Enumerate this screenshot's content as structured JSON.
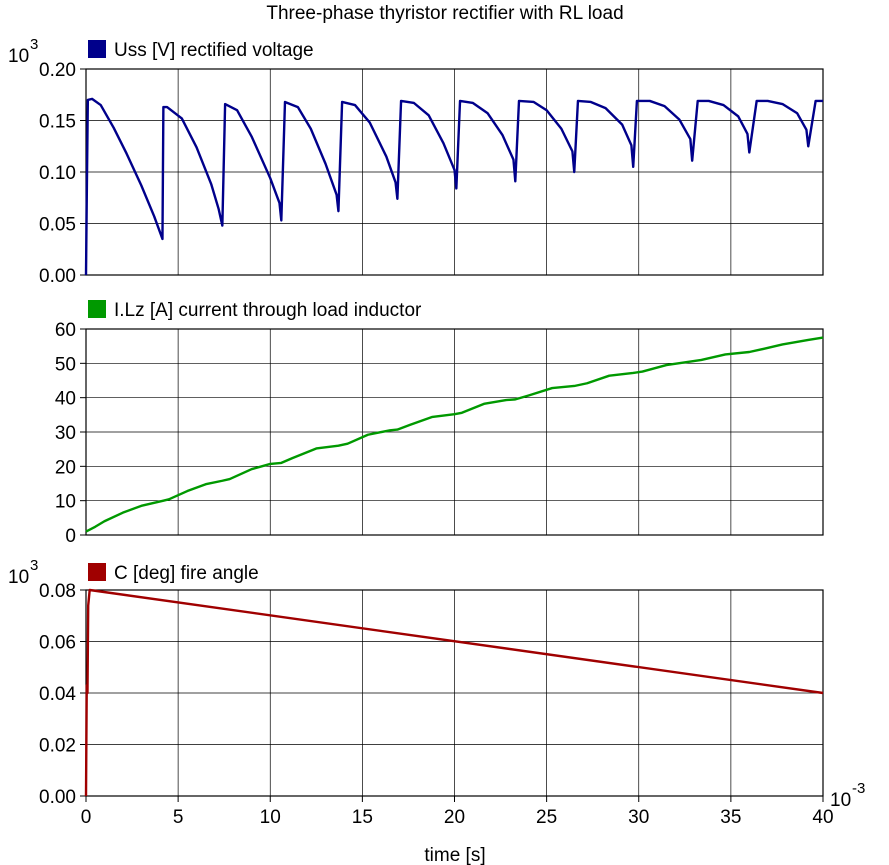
{
  "title": "Three-phase thyristor rectifier with RL load",
  "x_axis": {
    "label": "time [s]",
    "multiplier_base": "10",
    "multiplier_exp": "-3"
  },
  "chart_data": [
    {
      "type": "line",
      "series": [
        {
          "name": "Uss [V] rectified voltage",
          "color": "#00008b"
        }
      ],
      "legend": "top-left",
      "grid": true,
      "y_multiplier_base": "10",
      "y_multiplier_exp": "3",
      "xlim": [
        0,
        40
      ],
      "ylim": [
        0,
        0.2
      ],
      "yticks": [
        "0.00",
        "0.05",
        "0.10",
        "0.15",
        "0.20"
      ],
      "xticks": [
        "0",
        "5",
        "10",
        "15",
        "20",
        "25",
        "30",
        "35",
        "40"
      ],
      "x": [
        0,
        0.05,
        0.1,
        0.33,
        0.8,
        1.5,
        2.2,
        3.0,
        3.7,
        4.15,
        4.2,
        4.4,
        5.2,
        6.0,
        6.8,
        7.2,
        7.4,
        7.55,
        8.2,
        9.0,
        10.0,
        10.5,
        10.6,
        10.8,
        11.5,
        12.2,
        13.0,
        13.6,
        13.7,
        13.9,
        14.6,
        15.4,
        16.3,
        16.8,
        16.9,
        17.1,
        17.8,
        18.6,
        19.4,
        20.0,
        20.1,
        20.3,
        21.0,
        21.8,
        22.6,
        23.2,
        23.3,
        23.5,
        24.3,
        25.0,
        25.8,
        26.4,
        26.5,
        26.7,
        27.4,
        28.2,
        29.1,
        29.6,
        29.7,
        29.9,
        30.6,
        31.4,
        32.2,
        32.8,
        32.9,
        33.2,
        33.8,
        34.6,
        35.4,
        35.9,
        36.0,
        36.4,
        37.0,
        37.8,
        38.6,
        39.1,
        39.2,
        39.6,
        40.0
      ],
      "y": [
        0,
        0.09,
        0.17,
        0.171,
        0.165,
        0.143,
        0.118,
        0.087,
        0.057,
        0.035,
        0.163,
        0.163,
        0.152,
        0.124,
        0.088,
        0.064,
        0.048,
        0.166,
        0.16,
        0.134,
        0.094,
        0.07,
        0.053,
        0.168,
        0.163,
        0.142,
        0.108,
        0.078,
        0.062,
        0.168,
        0.165,
        0.148,
        0.115,
        0.09,
        0.074,
        0.169,
        0.167,
        0.155,
        0.128,
        0.102,
        0.084,
        0.169,
        0.167,
        0.157,
        0.136,
        0.112,
        0.091,
        0.169,
        0.168,
        0.16,
        0.142,
        0.12,
        0.1,
        0.169,
        0.168,
        0.162,
        0.146,
        0.126,
        0.105,
        0.169,
        0.169,
        0.164,
        0.151,
        0.132,
        0.111,
        0.169,
        0.169,
        0.165,
        0.154,
        0.137,
        0.119,
        0.169,
        0.169,
        0.166,
        0.157,
        0.141,
        0.125,
        0.169,
        0.169
      ]
    },
    {
      "type": "line",
      "series": [
        {
          "name": "I.Lz [A] current through load inductor",
          "color": "#009900"
        }
      ],
      "legend": "top-left",
      "grid": true,
      "xlim": [
        0,
        40
      ],
      "ylim": [
        0,
        60
      ],
      "yticks": [
        "0",
        "10",
        "20",
        "30",
        "40",
        "50",
        "60"
      ],
      "xticks": [
        "0",
        "5",
        "10",
        "15",
        "20",
        "25",
        "30",
        "35",
        "40"
      ],
      "x": [
        0,
        0.5,
        1.0,
        2.0,
        3.0,
        4.2,
        4.5,
        5.5,
        6.5,
        7.4,
        7.8,
        9.0,
        10.0,
        10.6,
        11.2,
        12.5,
        13.7,
        14.2,
        15.3,
        16.5,
        16.9,
        17.6,
        18.8,
        20.0,
        20.4,
        21.6,
        22.8,
        23.3,
        24.0,
        25.3,
        26.5,
        27.2,
        28.4,
        29.7,
        30.2,
        31.5,
        32.8,
        33.4,
        34.7,
        36.0,
        36.6,
        37.8,
        39.2,
        40.0
      ],
      "y": [
        1,
        2.4,
        4.0,
        6.5,
        8.5,
        10.0,
        10.4,
        12.8,
        14.8,
        15.8,
        16.3,
        19.2,
        20.7,
        21.0,
        22.4,
        25.2,
        26.0,
        26.6,
        29.2,
        30.5,
        30.7,
        32.1,
        34.4,
        35.2,
        35.6,
        38.2,
        39.3,
        39.5,
        40.6,
        42.8,
        43.4,
        44.2,
        46.4,
        47.2,
        47.6,
        49.5,
        50.5,
        51.0,
        52.6,
        53.3,
        54.0,
        55.5,
        56.8,
        57.5
      ]
    },
    {
      "type": "line",
      "series": [
        {
          "name": "C [deg] fire angle",
          "color": "#a00000"
        }
      ],
      "legend": "top-left",
      "grid": true,
      "y_multiplier_base": "10",
      "y_multiplier_exp": "3",
      "xlim": [
        0,
        40
      ],
      "ylim": [
        0,
        0.08
      ],
      "yticks": [
        "0.00",
        "0.02",
        "0.04",
        "0.06",
        "0.08"
      ],
      "xticks": [
        "0",
        "5",
        "10",
        "15",
        "20",
        "25",
        "30",
        "35",
        "40"
      ],
      "x": [
        0,
        0.04,
        0.08,
        0.12,
        0.2,
        40
      ],
      "y": [
        0,
        0.043,
        0.04,
        0.074,
        0.08,
        0.04
      ]
    }
  ]
}
